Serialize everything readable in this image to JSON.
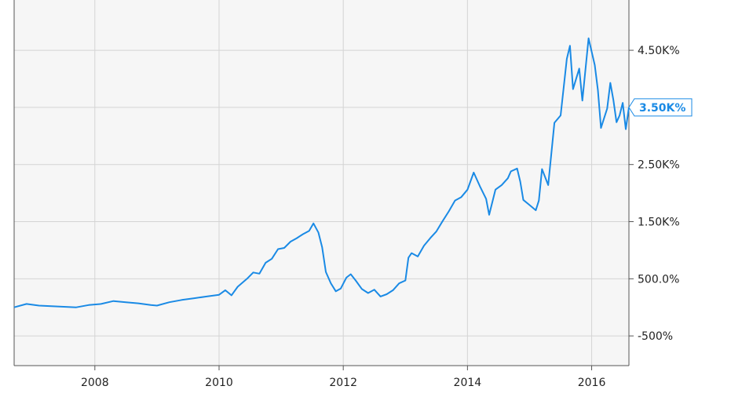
{
  "chart_data": {
    "type": "line",
    "title": "",
    "xlabel": "",
    "ylabel": "",
    "xlim": [
      2006.7,
      2016.6
    ],
    "ylim": [
      -1020,
      5380
    ],
    "grid": true,
    "legend": "none",
    "x_ticks": [
      {
        "value": 2008,
        "label": "2008"
      },
      {
        "value": 2010,
        "label": "2010"
      },
      {
        "value": 2012,
        "label": "2012"
      },
      {
        "value": 2014,
        "label": "2014"
      },
      {
        "value": 2016,
        "label": "2016"
      }
    ],
    "y_ticks": [
      {
        "value": -500,
        "label": "-500%"
      },
      {
        "value": 500,
        "label": "500.0%"
      },
      {
        "value": 1500,
        "label": "1.50K%"
      },
      {
        "value": 2500,
        "label": "2.50K%"
      },
      {
        "value": 3500,
        "label": "3.50K%"
      },
      {
        "value": 4500,
        "label": "4.50K%"
      }
    ],
    "last_value_label": "3.50K%",
    "series": [
      {
        "color": "#1a8ae5",
        "points": [
          [
            2006.7,
            0
          ],
          [
            2006.9,
            60
          ],
          [
            2007.1,
            30
          ],
          [
            2007.3,
            20
          ],
          [
            2007.5,
            10
          ],
          [
            2007.7,
            0
          ],
          [
            2007.9,
            40
          ],
          [
            2008.1,
            60
          ],
          [
            2008.3,
            110
          ],
          [
            2008.5,
            90
          ],
          [
            2008.7,
            70
          ],
          [
            2008.9,
            40
          ],
          [
            2009.0,
            30
          ],
          [
            2009.2,
            90
          ],
          [
            2009.4,
            130
          ],
          [
            2009.6,
            160
          ],
          [
            2009.8,
            190
          ],
          [
            2010.0,
            220
          ],
          [
            2010.1,
            300
          ],
          [
            2010.2,
            210
          ],
          [
            2010.3,
            360
          ],
          [
            2010.45,
            500
          ],
          [
            2010.55,
            610
          ],
          [
            2010.65,
            590
          ],
          [
            2010.75,
            780
          ],
          [
            2010.85,
            850
          ],
          [
            2010.95,
            1020
          ],
          [
            2011.05,
            1040
          ],
          [
            2011.15,
            1150
          ],
          [
            2011.25,
            1210
          ],
          [
            2011.35,
            1280
          ],
          [
            2011.45,
            1340
          ],
          [
            2011.52,
            1470
          ],
          [
            2011.6,
            1310
          ],
          [
            2011.66,
            1050
          ],
          [
            2011.72,
            620
          ],
          [
            2011.8,
            420
          ],
          [
            2011.88,
            280
          ],
          [
            2011.96,
            330
          ],
          [
            2012.05,
            520
          ],
          [
            2012.12,
            580
          ],
          [
            2012.2,
            470
          ],
          [
            2012.3,
            320
          ],
          [
            2012.4,
            250
          ],
          [
            2012.5,
            310
          ],
          [
            2012.6,
            190
          ],
          [
            2012.7,
            230
          ],
          [
            2012.8,
            300
          ],
          [
            2012.9,
            420
          ],
          [
            2013.0,
            470
          ],
          [
            2013.05,
            870
          ],
          [
            2013.1,
            950
          ],
          [
            2013.2,
            890
          ],
          [
            2013.3,
            1080
          ],
          [
            2013.4,
            1210
          ],
          [
            2013.5,
            1330
          ],
          [
            2013.6,
            1510
          ],
          [
            2013.7,
            1680
          ],
          [
            2013.8,
            1870
          ],
          [
            2013.9,
            1930
          ],
          [
            2014.0,
            2060
          ],
          [
            2014.1,
            2360
          ],
          [
            2014.2,
            2120
          ],
          [
            2014.3,
            1900
          ],
          [
            2014.35,
            1620
          ],
          [
            2014.45,
            2060
          ],
          [
            2014.55,
            2140
          ],
          [
            2014.65,
            2260
          ],
          [
            2014.7,
            2380
          ],
          [
            2014.8,
            2430
          ],
          [
            2014.85,
            2200
          ],
          [
            2014.9,
            1880
          ],
          [
            2015.0,
            1790
          ],
          [
            2015.1,
            1700
          ],
          [
            2015.15,
            1870
          ],
          [
            2015.2,
            2420
          ],
          [
            2015.3,
            2140
          ],
          [
            2015.4,
            3230
          ],
          [
            2015.5,
            3360
          ],
          [
            2015.6,
            4350
          ],
          [
            2015.65,
            4580
          ],
          [
            2015.7,
            3820
          ],
          [
            2015.8,
            4180
          ],
          [
            2015.85,
            3620
          ],
          [
            2015.95,
            4710
          ],
          [
            2016.05,
            4240
          ],
          [
            2016.1,
            3800
          ],
          [
            2016.15,
            3140
          ],
          [
            2016.25,
            3480
          ],
          [
            2016.3,
            3930
          ],
          [
            2016.35,
            3630
          ],
          [
            2016.4,
            3240
          ],
          [
            2016.45,
            3360
          ],
          [
            2016.5,
            3580
          ],
          [
            2016.55,
            3120
          ],
          [
            2016.6,
            3500
          ]
        ]
      }
    ],
    "colors": {
      "plot_background": "#f6f6f6",
      "grid": "#d4d4d4",
      "axis": "#555555",
      "line": "#1a8ae5"
    }
  }
}
